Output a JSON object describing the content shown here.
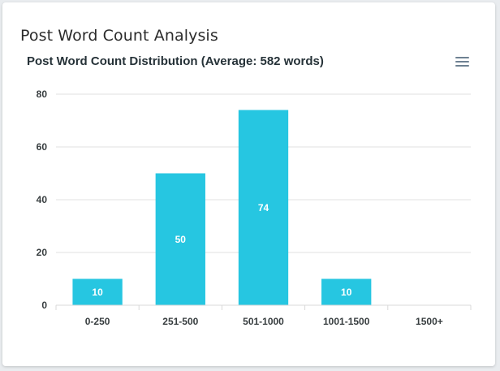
{
  "card": {
    "title": "Post Word Count Analysis"
  },
  "menu": {
    "icon": "hamburger-menu-icon"
  },
  "colors": {
    "bar": "#26c6e1",
    "grid": "#e0e0e0",
    "text": "#373d3f"
  },
  "chart_data": {
    "type": "bar",
    "title": "Post Word Count Distribution (Average: 582 words)",
    "categories": [
      "0-250",
      "251-500",
      "501-1000",
      "1001-1500",
      "1500+"
    ],
    "values": [
      10,
      50,
      74,
      10,
      0
    ],
    "ylim": [
      0,
      80
    ],
    "yticks": [
      0,
      20,
      40,
      60,
      80
    ],
    "grid": true,
    "data_labels": true
  }
}
